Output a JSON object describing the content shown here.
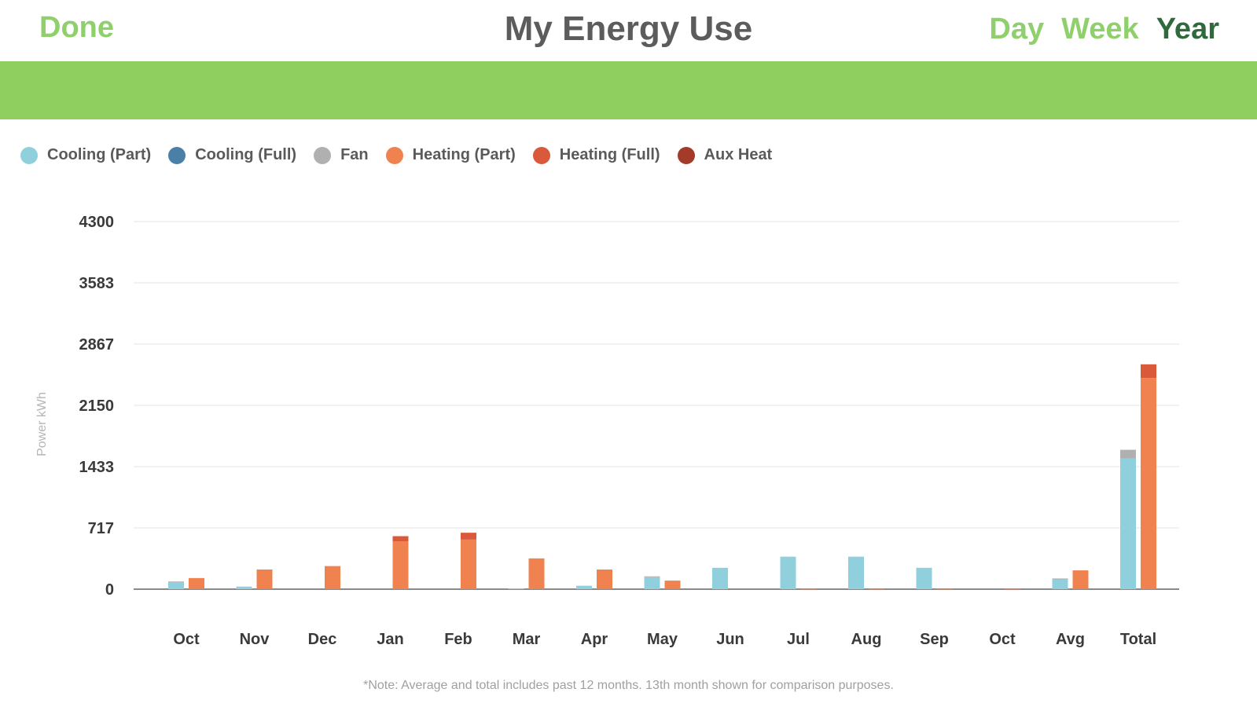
{
  "header": {
    "done_label": "Done",
    "title": "My Energy Use",
    "tabs": [
      {
        "label": "Day",
        "active": false
      },
      {
        "label": "Week",
        "active": false
      },
      {
        "label": "Year",
        "active": true
      }
    ]
  },
  "colors": {
    "accent_green": "#8fcf60",
    "active_tab": "#2e6a3c",
    "cooling_part": "#8fd0dc",
    "cooling_full": "#4a7fa8",
    "fan": "#b0b0b0",
    "heating_part": "#f0824f",
    "heating_full": "#d9593a",
    "aux_heat": "#a33a2a"
  },
  "legend": [
    {
      "label": "Cooling (Part)",
      "color": "#8fd0dc"
    },
    {
      "label": "Cooling (Full)",
      "color": "#4a7fa8"
    },
    {
      "label": "Fan",
      "color": "#b0b0b0"
    },
    {
      "label": "Heating (Part)",
      "color": "#f0824f"
    },
    {
      "label": "Heating (Full)",
      "color": "#d9593a"
    },
    {
      "label": "Aux Heat",
      "color": "#a33a2a"
    }
  ],
  "footnote": "*Note: Average and total includes past 12 months. 13th month shown for comparison purposes.",
  "chart_data": {
    "type": "bar",
    "ylabel": "Power kWh",
    "ylim": [
      0,
      4300
    ],
    "yticks": [
      "4300",
      "3583",
      "2867",
      "2150",
      "1433",
      "717",
      "0"
    ],
    "ytick_values": [
      4300,
      3583,
      2867,
      2150,
      1433,
      717,
      0
    ],
    "grid": true,
    "legend_position": "top-left",
    "categories": [
      "Oct",
      "Nov",
      "Dec",
      "Jan",
      "Feb",
      "Mar",
      "Apr",
      "May",
      "Jun",
      "Jul",
      "Aug",
      "Sep",
      "Oct",
      "Avg",
      "Total"
    ],
    "series": [
      {
        "name": "Cooling (Part)",
        "group": "cooling",
        "values": [
          80,
          30,
          0,
          0,
          0,
          10,
          40,
          140,
          250,
          380,
          380,
          250,
          0,
          120,
          1530
        ]
      },
      {
        "name": "Cooling (Full)",
        "group": "cooling",
        "values": [
          0,
          0,
          0,
          0,
          0,
          0,
          0,
          0,
          0,
          0,
          0,
          0,
          0,
          0,
          0
        ]
      },
      {
        "name": "Fan",
        "group": "cooling",
        "values": [
          10,
          0,
          0,
          0,
          0,
          0,
          0,
          10,
          0,
          0,
          0,
          0,
          0,
          5,
          100
        ]
      },
      {
        "name": "Heating (Part)",
        "group": "heating",
        "values": [
          130,
          230,
          270,
          560,
          580,
          360,
          230,
          100,
          0,
          5,
          5,
          5,
          5,
          220,
          2470
        ]
      },
      {
        "name": "Heating (Full)",
        "group": "heating",
        "values": [
          0,
          0,
          0,
          60,
          80,
          0,
          0,
          0,
          0,
          0,
          0,
          0,
          0,
          0,
          160
        ]
      },
      {
        "name": "Aux Heat",
        "group": "heating",
        "values": [
          0,
          0,
          0,
          0,
          0,
          0,
          0,
          0,
          0,
          0,
          0,
          0,
          0,
          0,
          0
        ]
      }
    ]
  }
}
